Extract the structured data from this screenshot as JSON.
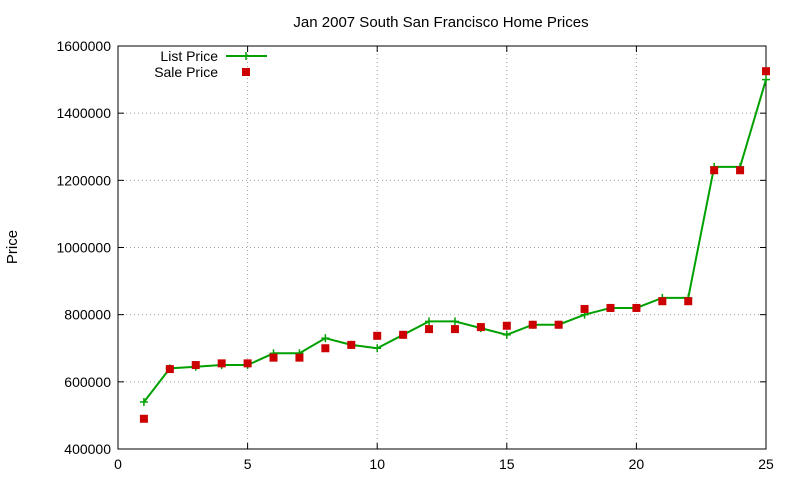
{
  "chart_data": {
    "type": "line",
    "title": "Jan 2007 South San Francisco Home Prices",
    "xlabel": "",
    "ylabel": "Price",
    "xlim": [
      0,
      25
    ],
    "ylim": [
      400000,
      1600000
    ],
    "xticks": [
      0,
      5,
      10,
      15,
      20,
      25
    ],
    "yticks": [
      400000,
      600000,
      800000,
      1000000,
      1200000,
      1400000,
      1600000
    ],
    "grid": true,
    "legend_position": "top-left",
    "series": [
      {
        "name": "List Price",
        "style": "line+cross",
        "color": "#00a000",
        "x": [
          1,
          2,
          3,
          4,
          5,
          6,
          7,
          8,
          9,
          10,
          11,
          12,
          13,
          14,
          15,
          16,
          17,
          18,
          19,
          20,
          21,
          22,
          23,
          24,
          25
        ],
        "values": [
          540000,
          640000,
          645000,
          650000,
          650000,
          685000,
          685000,
          730000,
          710000,
          700000,
          740000,
          780000,
          780000,
          760000,
          740000,
          770000,
          770000,
          800000,
          820000,
          820000,
          850000,
          850000,
          1240000,
          1240000,
          1500000
        ]
      },
      {
        "name": "Sale Price",
        "style": "square",
        "color": "#cc0000",
        "x": [
          1,
          2,
          3,
          4,
          5,
          6,
          7,
          8,
          9,
          10,
          11,
          12,
          13,
          14,
          15,
          16,
          17,
          18,
          19,
          20,
          21,
          22,
          23,
          24,
          25
        ],
        "values": [
          490000,
          638000,
          650000,
          655000,
          655000,
          672000,
          672000,
          700000,
          710000,
          737000,
          740000,
          757000,
          757000,
          763000,
          767000,
          770000,
          770000,
          817000,
          820000,
          820000,
          840000,
          840000,
          1230000,
          1230000,
          1525000
        ]
      }
    ]
  }
}
